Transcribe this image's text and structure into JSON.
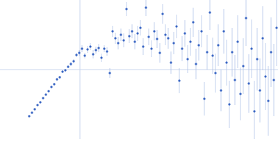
{
  "chart_data": {
    "type": "scatter",
    "xlim": [
      0,
      4
    ],
    "ylim": [
      -1,
      1
    ],
    "crosshair": {
      "x": 1.15,
      "y": 0,
      "color": "#c9d5ec"
    },
    "error_color": "#b3c4e8",
    "series": [
      {
        "color": "#3a66c4",
        "x": [
          0.42,
          0.46,
          0.5,
          0.54,
          0.58,
          0.62,
          0.66,
          0.7,
          0.74,
          0.78,
          0.82,
          0.86,
          0.9,
          0.94,
          0.98,
          1.02,
          1.06,
          1.1,
          1.14,
          1.18,
          1.22,
          1.26,
          1.3,
          1.34,
          1.38,
          1.42,
          1.46,
          1.5,
          1.54,
          1.58,
          1.62,
          1.66,
          1.7,
          1.74,
          1.78,
          1.82,
          1.86,
          1.9,
          1.94,
          1.98,
          2.02,
          2.06,
          2.1,
          2.14,
          2.18,
          2.22,
          2.26,
          2.3,
          2.34,
          2.38,
          2.42,
          2.46,
          2.5,
          2.54,
          2.58,
          2.62,
          2.66,
          2.7,
          2.74,
          2.78,
          2.82,
          2.86,
          2.9,
          2.94,
          2.98,
          3.02,
          3.06,
          3.1,
          3.14,
          3.18,
          3.22,
          3.26,
          3.3,
          3.34,
          3.38,
          3.42,
          3.46,
          3.5,
          3.54,
          3.58,
          3.62,
          3.66,
          3.7,
          3.74,
          3.78,
          3.82,
          3.86,
          3.9,
          3.94,
          3.98
        ],
        "values": [
          -0.67,
          -0.62,
          -0.57,
          -0.51,
          -0.47,
          -0.41,
          -0.36,
          -0.31,
          -0.25,
          -0.21,
          -0.14,
          -0.11,
          -0.03,
          -0.01,
          0.04,
          0.08,
          0.12,
          0.21,
          0.24,
          0.3,
          0.2,
          0.29,
          0.33,
          0.22,
          0.28,
          0.31,
          0.17,
          0.3,
          0.26,
          -0.05,
          0.55,
          0.45,
          0.38,
          0.5,
          0.42,
          0.87,
          0.48,
          0.55,
          0.4,
          0.52,
          0.6,
          0.33,
          0.89,
          0.47,
          0.3,
          0.55,
          0.44,
          0.24,
          0.8,
          0.5,
          0.45,
          0.1,
          0.38,
          0.62,
          -0.16,
          0.3,
          0.52,
          0.15,
          0.4,
          0.68,
          0.08,
          0.35,
          0.55,
          -0.42,
          0.25,
          0.82,
          0.2,
          -0.05,
          0.35,
          -0.3,
          0.55,
          0.1,
          -0.5,
          0.25,
          -0.15,
          0.4,
          -0.35,
          0.05,
          0.74,
          -0.2,
          0.3,
          -0.6,
          0.15,
          -0.3,
          0.45,
          -0.1,
          -0.45,
          0.25,
          -0.15,
          0.6
        ],
        "errors": [
          0.01,
          0.01,
          0.01,
          0.01,
          0.01,
          0.01,
          0.01,
          0.01,
          0.02,
          0.02,
          0.02,
          0.02,
          0.02,
          0.02,
          0.02,
          0.03,
          0.03,
          0.03,
          0.04,
          0.05,
          0.04,
          0.05,
          0.05,
          0.06,
          0.05,
          0.06,
          0.06,
          0.05,
          0.06,
          0.07,
          0.08,
          0.08,
          0.09,
          0.09,
          0.1,
          0.1,
          0.1,
          0.1,
          0.11,
          0.11,
          0.11,
          0.12,
          0.12,
          0.12,
          0.12,
          0.13,
          0.13,
          0.14,
          0.14,
          0.15,
          0.15,
          0.16,
          0.16,
          0.17,
          0.18,
          0.18,
          0.19,
          0.2,
          0.2,
          0.21,
          0.22,
          0.22,
          0.23,
          0.24,
          0.25,
          0.25,
          0.26,
          0.28,
          0.3,
          0.3,
          0.32,
          0.33,
          0.34,
          0.35,
          0.36,
          0.38,
          0.38,
          0.4,
          0.4,
          0.42,
          0.42,
          0.44,
          0.45,
          0.46,
          0.46,
          0.48,
          0.5,
          0.5,
          0.52,
          0.55
        ]
      }
    ]
  }
}
